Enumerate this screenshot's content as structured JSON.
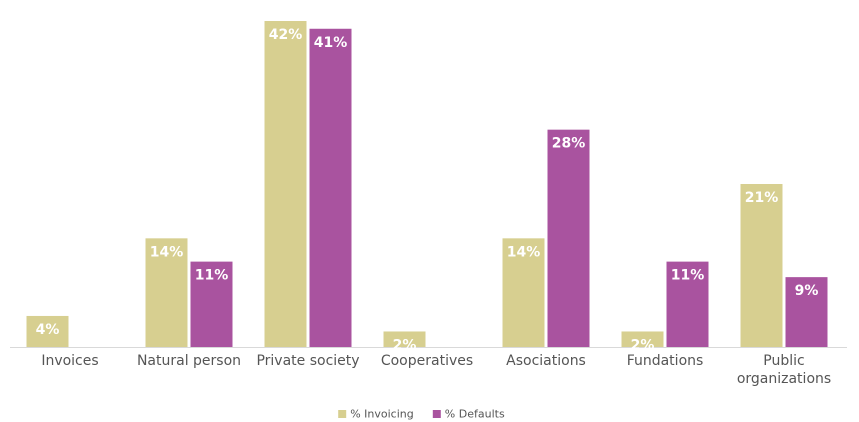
{
  "chart_data": {
    "type": "bar",
    "categories": [
      "Invoices",
      "Natural person",
      "Private society",
      "Cooperatives",
      "Asociations",
      "Fundations",
      "Public organizations"
    ],
    "series": [
      {
        "name": "% Invoicing",
        "color": "#d7cf90",
        "values": [
          4,
          14,
          42,
          2,
          14,
          2,
          21
        ],
        "value_labels": [
          "4%",
          "14%",
          "42%",
          "2%",
          "14%",
          "2%",
          "21%"
        ]
      },
      {
        "name": "% Defaults",
        "color": "#a9539f",
        "values": [
          null,
          11,
          41,
          null,
          28,
          11,
          9
        ],
        "value_labels": [
          null,
          "11%",
          "41%",
          null,
          "28%",
          "11%",
          "9%"
        ]
      }
    ],
    "legend": "bottom"
  }
}
